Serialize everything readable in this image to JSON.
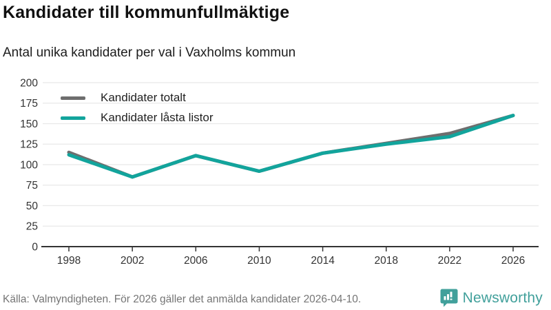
{
  "header": {
    "title": "Kandidater till kommunfullmäktige",
    "subtitle": "Antal unika kandidater per val i Vaxholms kommun"
  },
  "legend": {
    "items": [
      {
        "label": "Kandidater totalt",
        "color": "#6e6e6e"
      },
      {
        "label": "Kandidater låsta listor",
        "color": "#12a49c"
      }
    ]
  },
  "chart_data": {
    "type": "line",
    "title": "Kandidater till kommunfullmäktige",
    "subtitle": "Antal unika kandidater per val i Vaxholms kommun",
    "x": [
      1998,
      2002,
      2006,
      2010,
      2014,
      2018,
      2022,
      2026
    ],
    "series": [
      {
        "name": "Kandidater totalt",
        "color": "#6e6e6e",
        "values": [
          115,
          85,
          111,
          92,
          114,
          126,
          138,
          160
        ]
      },
      {
        "name": "Kandidater låsta listor",
        "color": "#12a49c",
        "values": [
          112,
          85,
          111,
          92,
          114,
          125,
          134,
          160
        ]
      }
    ],
    "xlabel": "",
    "ylabel": "",
    "ylim": [
      0,
      200
    ],
    "yticks": [
      0,
      25,
      50,
      75,
      100,
      125,
      150,
      175,
      200
    ],
    "grid": true,
    "legend_position": "top-left",
    "grid_color": "#e8e8e8",
    "axis_color": "#333333",
    "tick_label_color": "#333333"
  },
  "footer": {
    "source": "Källa: Valmyndigheten. För 2026 gäller det anmälda kandidater 2026-04-10.",
    "brand_name": "Newsworthy",
    "brand_color": "#41a09b",
    "logo_icon": "bar-chart-speech-bubble-icon"
  }
}
